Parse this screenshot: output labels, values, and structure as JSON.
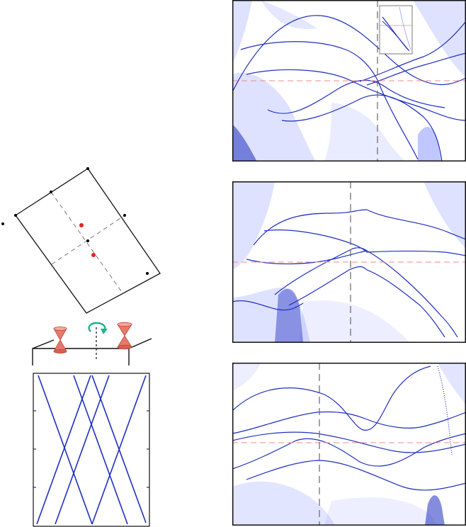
{
  "colors": {
    "band_line": "#1f2fbf",
    "continuum": "#4a5cff",
    "fermi_line": "#f08a8a",
    "kpoint_line": "#666666",
    "dot_black": "#000000",
    "dot_red": "#e8201c",
    "cone_fill": "#e8796a",
    "arrow": "#1fb28a",
    "frame": "#111111"
  },
  "icons": {
    "dirac_cone": "hourglass-cone-icon",
    "rotation_arrow": "curved-rotation-arrow-icon"
  },
  "left": {
    "bz_diagram": {
      "black_points": 6,
      "red_points": 2
    },
    "schematic": {
      "cones": 2
    },
    "dispersion_plot": {
      "lines": 6
    }
  },
  "right_panels": [
    {
      "id": "top",
      "has_inset": true,
      "fermi_level": "dashed-red",
      "k_marker": "dashed-gray"
    },
    {
      "id": "middle",
      "has_inset": false,
      "fermi_level": "dashed-red",
      "k_marker": "dashed-gray"
    },
    {
      "id": "bottom",
      "has_inset": false,
      "fermi_level": "dashed-red",
      "k_marker": "dashed-gray"
    }
  ]
}
